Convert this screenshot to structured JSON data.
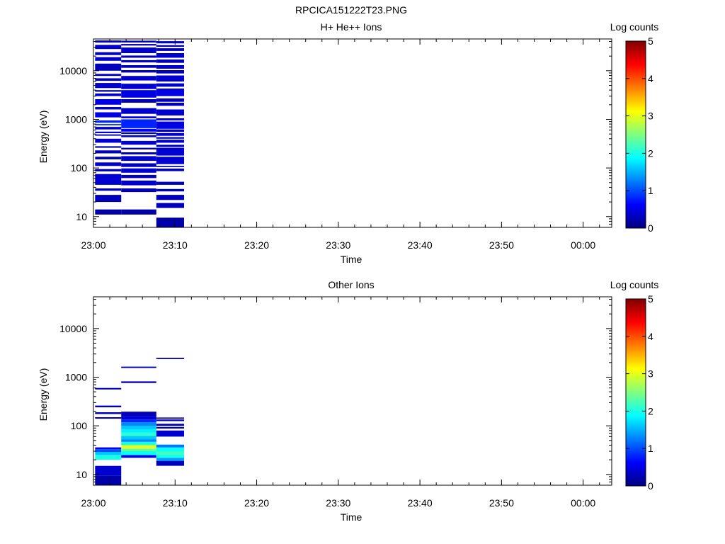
{
  "figure_title": "RPCICA151222T23.PNG",
  "colors": {
    "background": "#ffffff",
    "axes": "#000000",
    "colormap": [
      "#00007f",
      "#0000ff",
      "#007fff",
      "#00ffff",
      "#7fff7f",
      "#ffff00",
      "#ff7f00",
      "#ff0000",
      "#7f0000"
    ]
  },
  "chart_data": [
    {
      "type": "heatmap",
      "title": "H+ He++ Ions",
      "xlabel": "Time",
      "ylabel": "Energy (eV)",
      "x_tick_labels": [
        "23:00",
        "23:10",
        "23:20",
        "23:30",
        "23:40",
        "23:50",
        "00:00"
      ],
      "x_tick_minutes": [
        0,
        10,
        20,
        30,
        40,
        50,
        60
      ],
      "xlim_minutes": [
        0,
        63.5
      ],
      "y_scale": "log",
      "ylim": [
        6,
        45000
      ],
      "y_tick_labels": [
        "10",
        "100",
        "1000",
        "10000"
      ],
      "y_tick_values": [
        10,
        100,
        1000,
        10000
      ],
      "colorbar": {
        "label": "Log counts",
        "range": [
          0,
          5
        ],
        "tick_labels": [
          "0",
          "1",
          "2",
          "3",
          "4",
          "5"
        ]
      },
      "time_bins_minutes": [
        [
          0.2,
          3.4
        ],
        [
          3.4,
          7.7
        ],
        [
          7.7,
          11.1
        ]
      ],
      "cells": [
        [
          0,
          11,
          14,
          0.2
        ],
        [
          0,
          20,
          28,
          0.3
        ],
        [
          0,
          34,
          38,
          0.3
        ],
        [
          0,
          45,
          75,
          0.4
        ],
        [
          0,
          85,
          95,
          0.3
        ],
        [
          0,
          110,
          130,
          0.4
        ],
        [
          0,
          150,
          170,
          0.3
        ],
        [
          0,
          200,
          230,
          0.3
        ],
        [
          0,
          260,
          280,
          0.3
        ],
        [
          0,
          330,
          400,
          0.4
        ],
        [
          0,
          460,
          490,
          0.3
        ],
        [
          0,
          520,
          560,
          0.4
        ],
        [
          0,
          620,
          700,
          0.5
        ],
        [
          0,
          750,
          800,
          0.9
        ],
        [
          0,
          850,
          950,
          0.8
        ],
        [
          0,
          1100,
          1400,
          0.5
        ],
        [
          0,
          1600,
          1800,
          0.4
        ],
        [
          0,
          2000,
          2600,
          0.5
        ],
        [
          0,
          3000,
          3400,
          0.4
        ],
        [
          0,
          3700,
          4000,
          0.3
        ],
        [
          0,
          4400,
          5600,
          0.4
        ],
        [
          0,
          6200,
          7000,
          0.3
        ],
        [
          0,
          7800,
          8600,
          0.4
        ],
        [
          0,
          10000,
          14000,
          0.3
        ],
        [
          0,
          16000,
          19000,
          0.4
        ],
        [
          0,
          21000,
          24000,
          0.3
        ],
        [
          0,
          28000,
          34000,
          0.4
        ],
        [
          0,
          38000,
          42000,
          0.3
        ],
        [
          1,
          11,
          14,
          0.2
        ],
        [
          1,
          32,
          38,
          0.3
        ],
        [
          1,
          44,
          55,
          0.4
        ],
        [
          1,
          62,
          72,
          0.3
        ],
        [
          1,
          80,
          98,
          0.4
        ],
        [
          1,
          105,
          125,
          0.3
        ],
        [
          1,
          140,
          175,
          0.4
        ],
        [
          1,
          190,
          210,
          0.3
        ],
        [
          1,
          240,
          260,
          0.3
        ],
        [
          1,
          300,
          360,
          0.4
        ],
        [
          1,
          430,
          470,
          0.4
        ],
        [
          1,
          500,
          540,
          0.5
        ],
        [
          1,
          560,
          640,
          0.6
        ],
        [
          1,
          660,
          1000,
          0.8
        ],
        [
          1,
          1050,
          1150,
          0.6
        ],
        [
          1,
          1300,
          1700,
          0.4
        ],
        [
          1,
          2200,
          2600,
          0.3
        ],
        [
          1,
          2800,
          4000,
          0.5
        ],
        [
          1,
          4200,
          5400,
          0.4
        ],
        [
          1,
          6300,
          7800,
          0.4
        ],
        [
          1,
          9200,
          10300,
          0.3
        ],
        [
          1,
          11500,
          13000,
          0.3
        ],
        [
          1,
          14800,
          16500,
          0.4
        ],
        [
          1,
          18500,
          20500,
          0.3
        ],
        [
          1,
          23000,
          30000,
          0.4
        ],
        [
          1,
          33000,
          35500,
          0.3
        ],
        [
          1,
          38000,
          41500,
          0.4
        ],
        [
          2,
          6,
          9.5,
          0.2
        ],
        [
          2,
          15,
          19,
          0.3
        ],
        [
          2,
          22,
          28,
          0.3
        ],
        [
          2,
          33,
          37,
          0.3
        ],
        [
          2,
          45,
          52,
          0.3
        ],
        [
          2,
          86,
          97,
          0.3
        ],
        [
          2,
          104,
          110,
          0.3
        ],
        [
          2,
          120,
          170,
          0.4
        ],
        [
          2,
          180,
          260,
          0.4
        ],
        [
          2,
          270,
          300,
          0.3
        ],
        [
          2,
          330,
          380,
          0.4
        ],
        [
          2,
          400,
          430,
          0.3
        ],
        [
          2,
          460,
          520,
          0.4
        ],
        [
          2,
          550,
          620,
          0.4
        ],
        [
          2,
          640,
          900,
          0.5
        ],
        [
          2,
          950,
          1050,
          0.5
        ],
        [
          2,
          1200,
          1600,
          0.4
        ],
        [
          2,
          1900,
          2200,
          0.3
        ],
        [
          2,
          2300,
          2700,
          0.3
        ],
        [
          2,
          3000,
          4300,
          0.5
        ],
        [
          2,
          4700,
          5500,
          0.4
        ],
        [
          2,
          6000,
          8000,
          0.4
        ],
        [
          2,
          8800,
          10300,
          0.3
        ],
        [
          2,
          11000,
          13000,
          0.4
        ],
        [
          2,
          14500,
          17000,
          0.3
        ],
        [
          2,
          18500,
          23000,
          0.4
        ],
        [
          2,
          25500,
          29000,
          0.3
        ],
        [
          2,
          31000,
          33500,
          0.3
        ],
        [
          2,
          36500,
          40500,
          0.4
        ]
      ]
    },
    {
      "type": "heatmap",
      "title": "Other Ions",
      "xlabel": "Time",
      "ylabel": "Energy (eV)",
      "x_tick_labels": [
        "23:00",
        "23:10",
        "23:20",
        "23:30",
        "23:40",
        "23:50",
        "00:00"
      ],
      "x_tick_minutes": [
        0,
        10,
        20,
        30,
        40,
        50,
        60
      ],
      "xlim_minutes": [
        0,
        63.5
      ],
      "y_scale": "log",
      "ylim": [
        6,
        45000
      ],
      "y_tick_labels": [
        "10",
        "100",
        "1000",
        "10000"
      ],
      "y_tick_values": [
        10,
        100,
        1000,
        10000
      ],
      "colorbar": {
        "label": "Log counts",
        "range": [
          0,
          5
        ],
        "tick_labels": [
          "0",
          "1",
          "2",
          "3",
          "4",
          "5"
        ]
      },
      "time_bins_minutes": [
        [
          0.2,
          3.4
        ],
        [
          3.4,
          7.7
        ],
        [
          7.7,
          11.1
        ]
      ],
      "cells": [
        [
          0,
          6,
          9.5,
          0.2
        ],
        [
          0,
          9.5,
          15,
          0.4
        ],
        [
          0,
          20,
          25,
          2.0
        ],
        [
          0,
          25,
          29,
          1.6
        ],
        [
          0,
          29,
          33,
          1.0
        ],
        [
          0,
          33,
          36,
          0.5
        ],
        [
          0,
          140,
          150,
          0.3
        ],
        [
          0,
          175,
          190,
          0.3
        ],
        [
          0,
          240,
          260,
          0.3
        ],
        [
          0,
          560,
          600,
          0.3
        ],
        [
          1,
          22,
          25,
          0.5
        ],
        [
          1,
          25,
          30,
          1.9
        ],
        [
          1,
          30,
          34,
          2.4
        ],
        [
          1,
          34,
          40,
          3.0
        ],
        [
          1,
          40,
          47,
          2.0
        ],
        [
          1,
          47,
          53,
          1.3
        ],
        [
          1,
          53,
          62,
          1.6
        ],
        [
          1,
          62,
          72,
          2.1
        ],
        [
          1,
          72,
          85,
          1.8
        ],
        [
          1,
          85,
          100,
          1.6
        ],
        [
          1,
          100,
          118,
          1.3
        ],
        [
          1,
          118,
          135,
          0.8
        ],
        [
          1,
          135,
          160,
          0.4
        ],
        [
          1,
          160,
          195,
          0.3
        ],
        [
          1,
          760,
          820,
          0.3
        ],
        [
          1,
          1550,
          1650,
          0.3
        ],
        [
          2,
          15,
          19,
          0.3
        ],
        [
          2,
          19,
          22,
          1.4
        ],
        [
          2,
          22,
          26,
          2.0
        ],
        [
          2,
          26,
          30,
          2.2
        ],
        [
          2,
          30,
          36,
          1.9
        ],
        [
          2,
          36,
          41,
          1.2
        ],
        [
          2,
          60,
          80,
          0.4
        ],
        [
          2,
          88,
          95,
          0.3
        ],
        [
          2,
          100,
          110,
          0.3
        ],
        [
          2,
          125,
          135,
          0.3
        ],
        [
          2,
          140,
          148,
          0.3
        ],
        [
          2,
          2350,
          2500,
          0.3
        ]
      ]
    }
  ]
}
